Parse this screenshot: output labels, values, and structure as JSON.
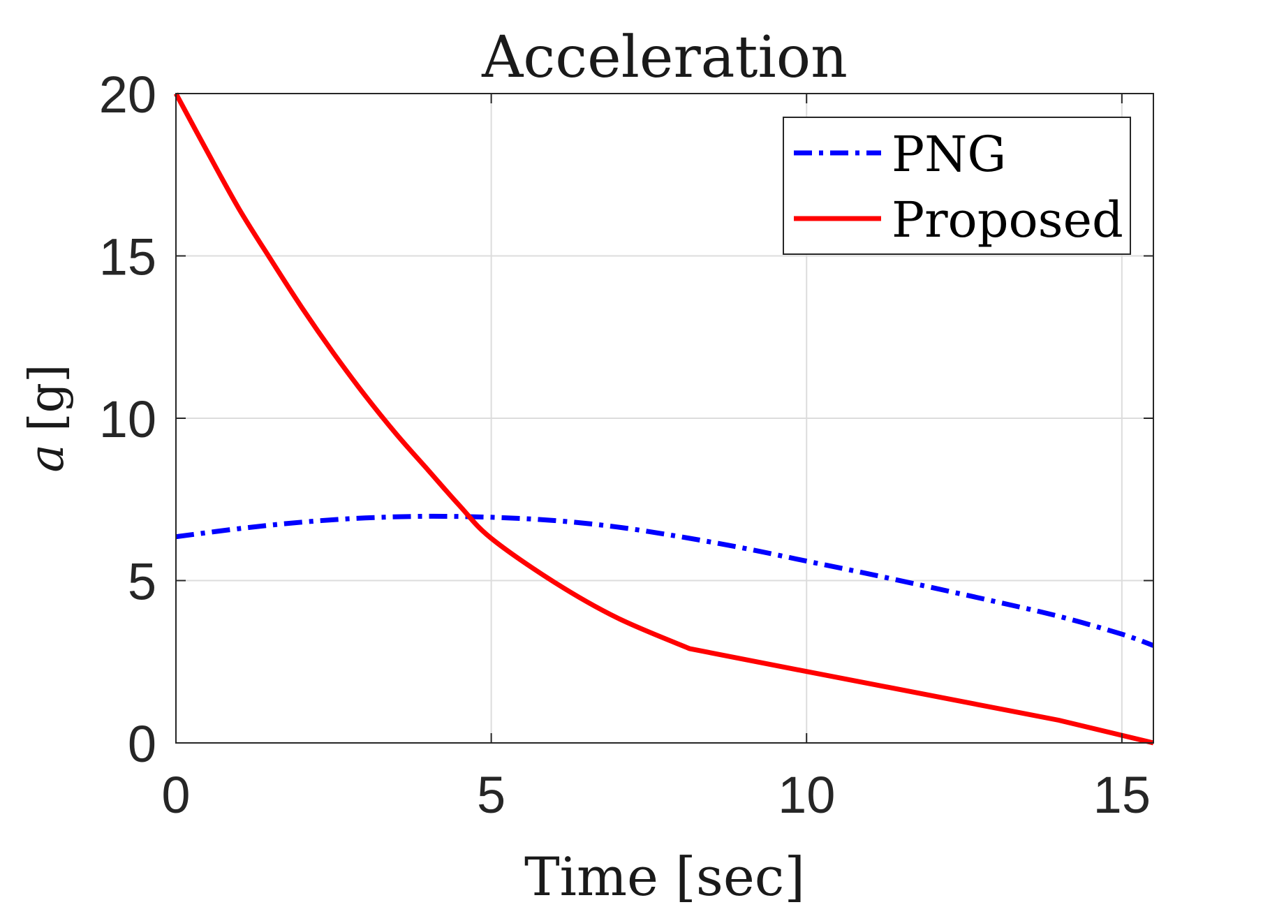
{
  "chart_data": {
    "type": "line",
    "title": "Acceleration",
    "xlabel": "Time [sec]",
    "ylabel": "a [g]",
    "ylabel_parts": {
      "variable": "a",
      "unit": "[g]"
    },
    "xlim": [
      0,
      15.5
    ],
    "ylim": [
      0,
      20
    ],
    "xticks": [
      0,
      5,
      10,
      15
    ],
    "yticks": [
      0,
      5,
      10,
      15,
      20
    ],
    "xtick_labels": [
      "0",
      "5",
      "10",
      "15"
    ],
    "ytick_labels": [
      "0",
      "5",
      "10",
      "15",
      "20"
    ],
    "grid": true,
    "legend_position": "top-right",
    "series": [
      {
        "name": "PNG",
        "color": "#0000ff",
        "line_style": "dash-dot",
        "x": [
          0,
          1,
          2,
          3,
          4,
          5,
          6,
          7,
          8,
          9,
          10,
          11,
          12,
          13,
          14,
          15,
          15.5
        ],
        "y": [
          6.35,
          6.6,
          6.8,
          6.93,
          6.98,
          6.95,
          6.85,
          6.65,
          6.35,
          6.0,
          5.6,
          5.2,
          4.78,
          4.35,
          3.9,
          3.35,
          3.0
        ]
      },
      {
        "name": "Proposed",
        "color": "#ff0000",
        "line_style": "solid",
        "x": [
          0,
          0.5,
          1,
          1.5,
          2,
          2.5,
          3,
          3.5,
          4,
          4.5,
          5,
          6,
          7,
          8.15,
          10,
          12,
          14,
          15.5
        ],
        "y": [
          20,
          18.2,
          16.45,
          14.9,
          13.4,
          12.0,
          10.7,
          9.5,
          8.4,
          7.3,
          6.3,
          4.95,
          3.85,
          2.9,
          2.2,
          1.45,
          0.7,
          0.0
        ]
      }
    ]
  }
}
